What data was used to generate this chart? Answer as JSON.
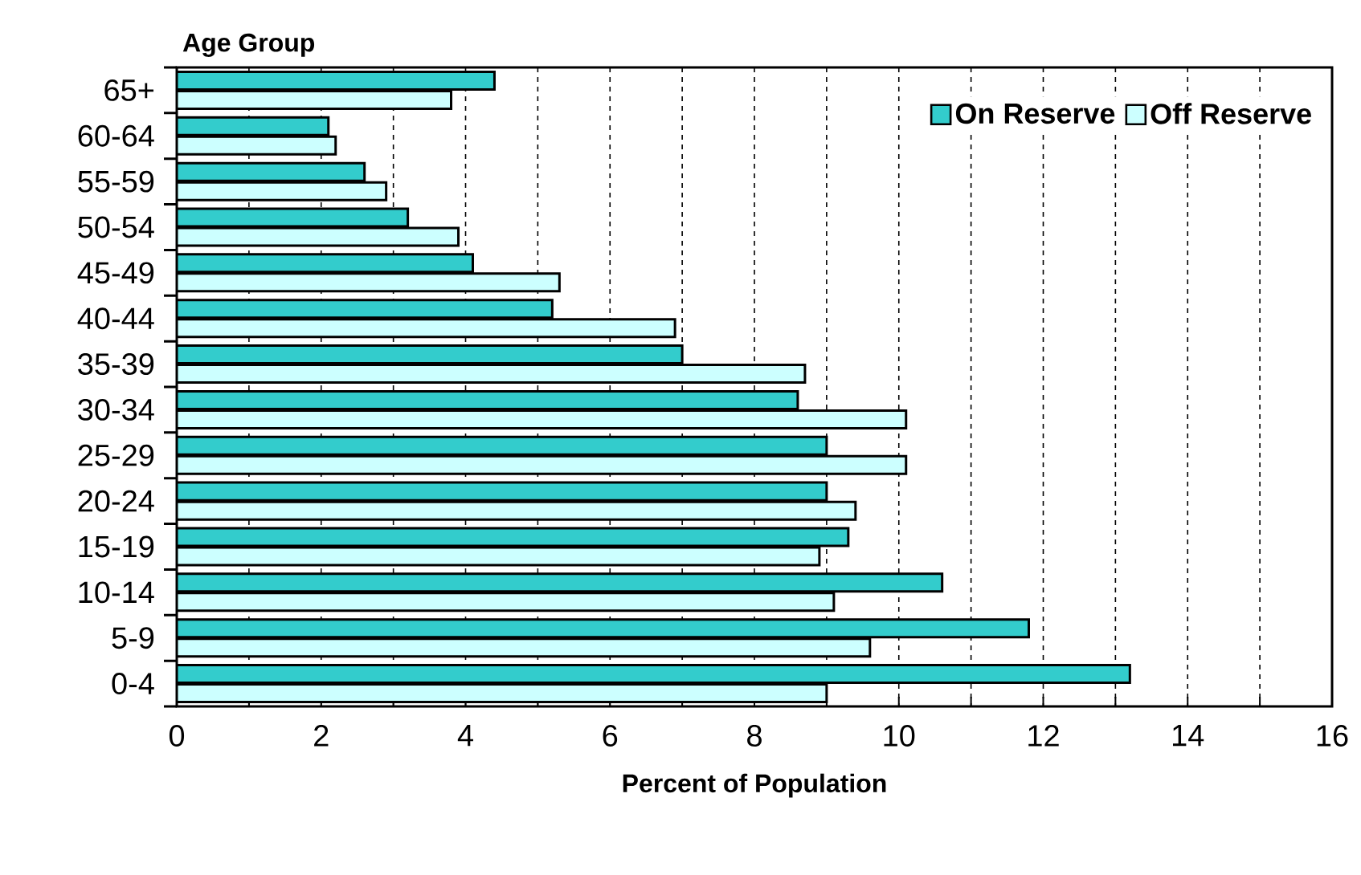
{
  "chart_data": {
    "type": "bar",
    "orientation": "horizontal",
    "xlabel": "Percent of Population",
    "ylabel": "Age Group",
    "categories": [
      "65+",
      "60-64",
      "55-59",
      "50-54",
      "45-49",
      "40-44",
      "35-39",
      "30-34",
      "25-29",
      "20-24",
      "15-19",
      "10-14",
      "5-9",
      "0-4"
    ],
    "series": [
      {
        "name": "On Reserve",
        "color": "#33cccc",
        "values": [
          4.4,
          2.1,
          2.6,
          3.2,
          4.1,
          5.2,
          7.0,
          8.6,
          9.0,
          9.0,
          9.3,
          10.6,
          11.8,
          13.2
        ]
      },
      {
        "name": "Off Reserve",
        "color": "#ccffff",
        "values": [
          3.8,
          2.2,
          2.9,
          3.9,
          5.3,
          6.9,
          8.7,
          10.1,
          10.1,
          9.4,
          8.9,
          9.1,
          9.6,
          9.0
        ]
      }
    ],
    "xlim": [
      0,
      16
    ],
    "xticks": [
      0,
      {
        "value": 1,
        "label": null
      },
      2,
      {
        "value": 3,
        "label": null
      },
      4,
      {
        "value": 5,
        "label": null
      },
      6,
      {
        "value": 7,
        "label": null
      },
      8,
      {
        "value": 9,
        "label": null
      },
      10,
      {
        "value": 11,
        "label": null
      },
      12,
      {
        "value": 13,
        "label": null
      },
      14,
      {
        "value": 15,
        "label": null
      },
      16
    ],
    "grid": "x",
    "legend": "top right"
  }
}
